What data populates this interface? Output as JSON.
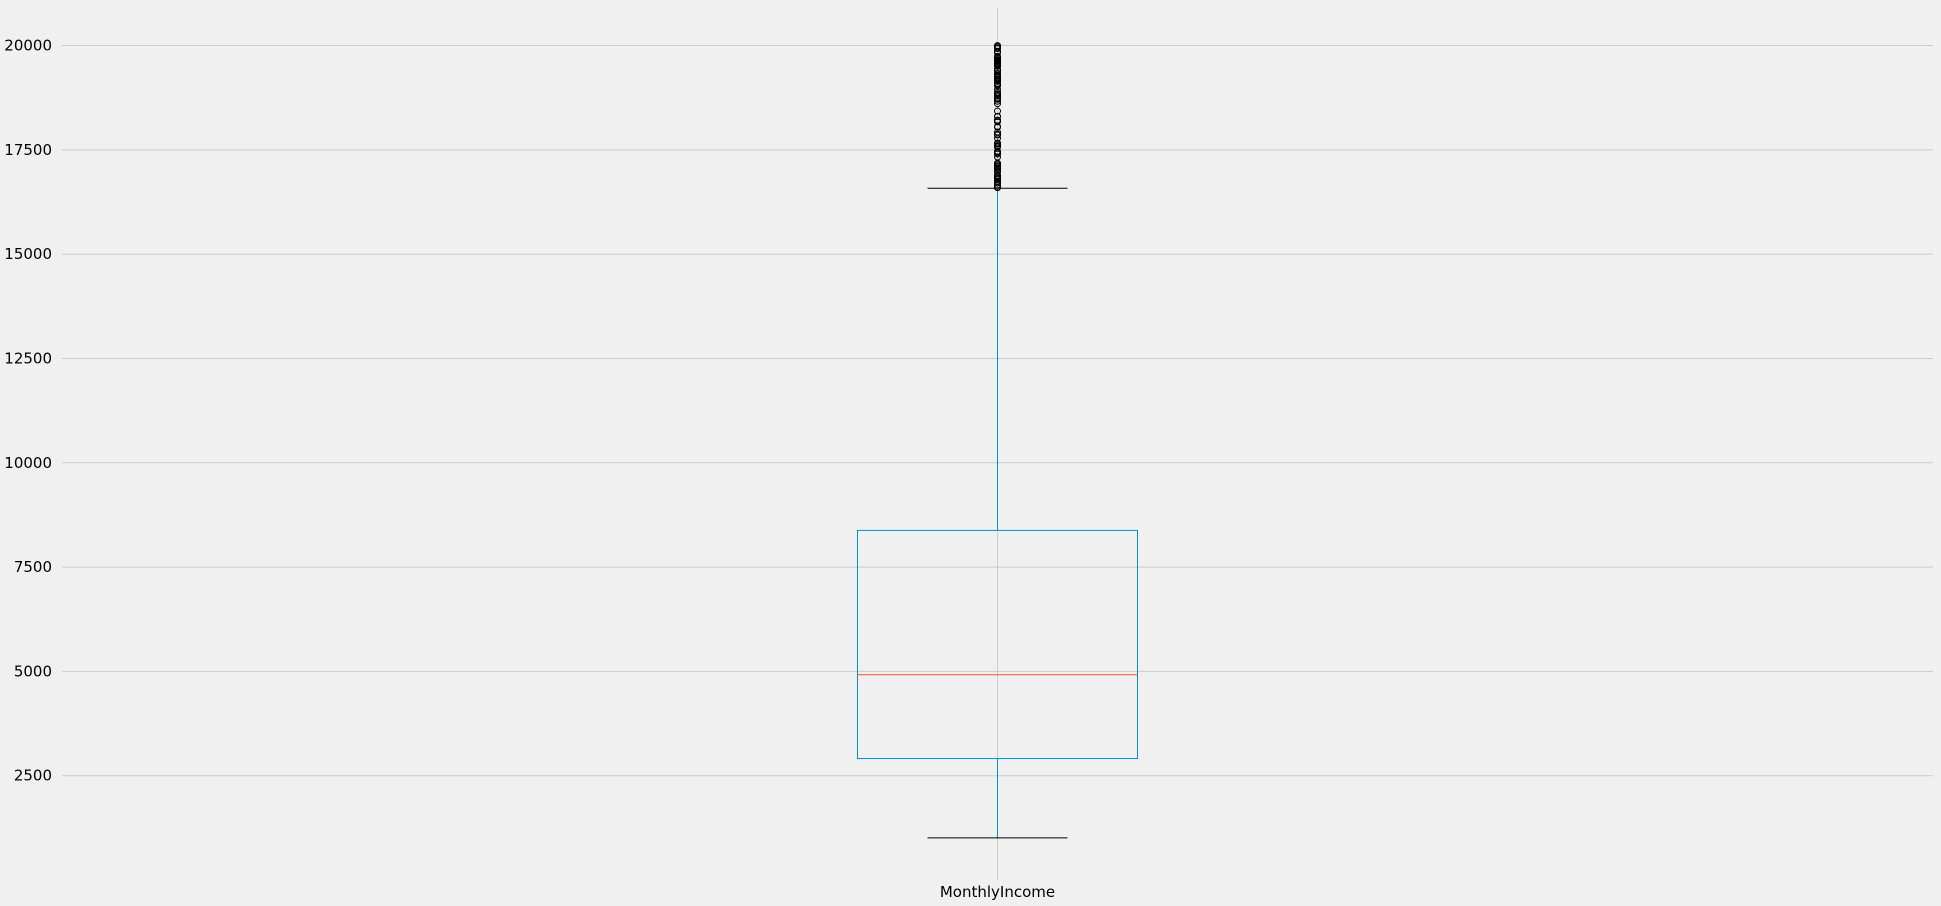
{
  "chart_data": {
    "type": "box",
    "categories": [
      "MonthlyIncome"
    ],
    "y_ticks": [
      2500,
      5000,
      7500,
      10000,
      12500,
      15000,
      17500,
      20000
    ],
    "y_tick_labels": [
      "2500",
      "5000",
      "7500",
      "10000",
      "12500",
      "15000",
      "17500",
      "20000"
    ],
    "ylim": [
      0,
      20900
    ],
    "grid": true,
    "boxes": [
      {
        "name": "MonthlyIncome",
        "whisker_low": 1009,
        "q1": 2911,
        "median": 4919,
        "q3": 8379,
        "whisker_high": 16581,
        "outliers": [
          16595,
          16598,
          16606,
          16659,
          16704,
          16752,
          16792,
          16799,
          16823,
          16856,
          16872,
          16880,
          16885,
          16959,
          17007,
          17046,
          17068,
          17099,
          17123,
          17159,
          17169,
          17174,
          17181,
          17328,
          17399,
          17426,
          17444,
          17465,
          17567,
          17584,
          17603,
          17639,
          17650,
          17665,
          17779,
          17856,
          17861,
          17875,
          17924,
          18041,
          18061,
          18172,
          18200,
          18213,
          18300,
          18303,
          18430,
          18606,
          18665,
          18711,
          18722,
          18740,
          18789,
          18824,
          18844,
          18880,
          18947,
          19033,
          19045,
          19068,
          19094,
          19141,
          19161,
          19187,
          19189,
          19197,
          19232,
          19237,
          19245,
          19272,
          19328,
          19331,
          19392,
          19406,
          19419,
          19431,
          19502,
          19513,
          19517,
          19537,
          19545,
          19566,
          19586,
          19613,
          19626,
          19636,
          19658,
          19665,
          19701,
          19717,
          19740,
          19833,
          19845,
          19847,
          19859,
          19926,
          19943,
          19973,
          19999
        ]
      }
    ]
  },
  "colors": {
    "background": "#f0f0f0",
    "grid": "#cbcbcb",
    "box": "#008fd5",
    "median": "#fc4f30",
    "cap": "#000000",
    "outlier_edge": "#000000"
  }
}
